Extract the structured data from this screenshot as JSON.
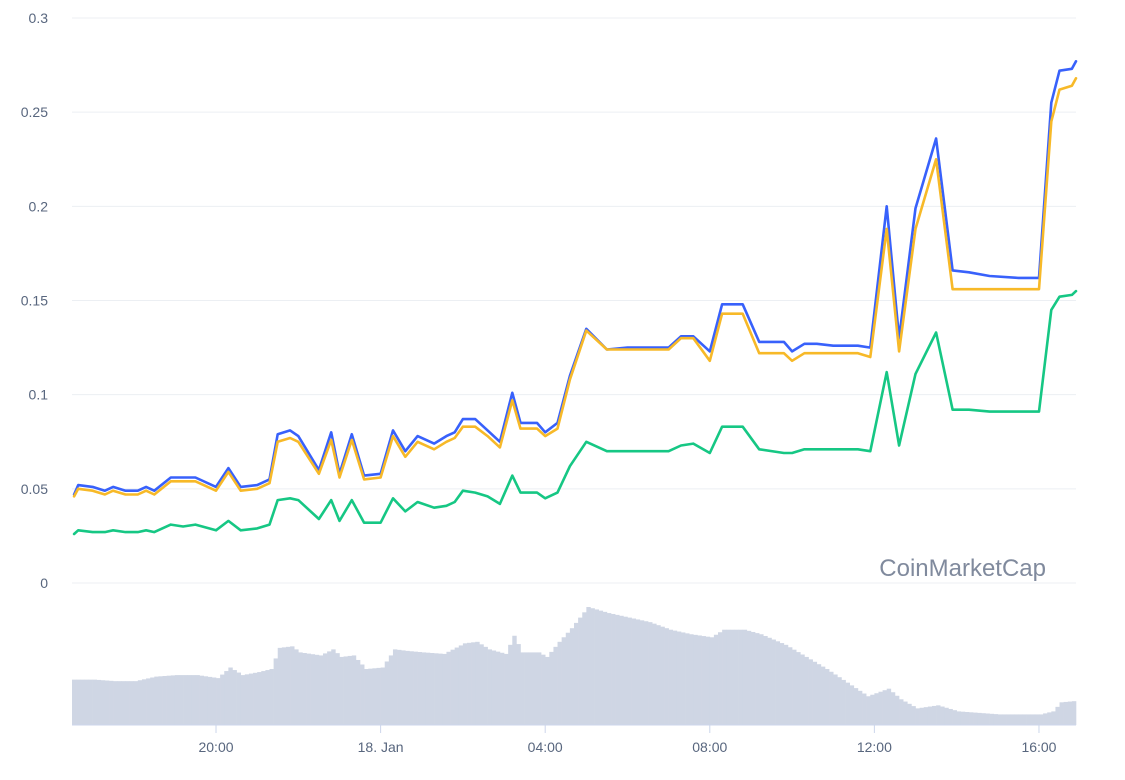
{
  "watermark": "CoinMarketCap",
  "colors": {
    "series_blue": "#3861fb",
    "series_yellow": "#f7b928",
    "series_green": "#16c784",
    "volume": "#cfd6e4",
    "grid": "#eceff3",
    "axis_text": "#58667e"
  },
  "chart_data": {
    "type": "line",
    "title": "",
    "xlabel": "",
    "ylabel": "",
    "ylim": [
      0,
      0.3
    ],
    "y_ticks": [
      {
        "value": 0,
        "label": "0"
      },
      {
        "value": 0.05,
        "label": "0.05"
      },
      {
        "value": 0.1,
        "label": "0.1"
      },
      {
        "value": 0.15,
        "label": "0.15"
      },
      {
        "value": 0.2,
        "label": "0.2"
      },
      {
        "value": 0.25,
        "label": "0.25"
      },
      {
        "value": 0.3,
        "label": "0.3"
      }
    ],
    "x_range_hours": [
      16.5,
      40.9
    ],
    "x_ticks": [
      {
        "hour": 20,
        "label": "20:00"
      },
      {
        "hour": 24,
        "label": "18. Jan"
      },
      {
        "hour": 28,
        "label": "04:00"
      },
      {
        "hour": 32,
        "label": "08:00"
      },
      {
        "hour": 36,
        "label": "12:00"
      },
      {
        "hour": 40,
        "label": "16:00"
      }
    ],
    "grid": true,
    "legend": "none",
    "series": [
      {
        "color": "#3861fb",
        "points": [
          [
            16.55,
            0.047
          ],
          [
            16.65,
            0.052
          ],
          [
            17.0,
            0.051
          ],
          [
            17.3,
            0.049
          ],
          [
            17.5,
            0.051
          ],
          [
            17.8,
            0.049
          ],
          [
            18.1,
            0.049
          ],
          [
            18.3,
            0.051
          ],
          [
            18.5,
            0.049
          ],
          [
            18.9,
            0.056
          ],
          [
            19.2,
            0.056
          ],
          [
            19.5,
            0.056
          ],
          [
            20.0,
            0.051
          ],
          [
            20.3,
            0.061
          ],
          [
            20.6,
            0.051
          ],
          [
            21.0,
            0.052
          ],
          [
            21.3,
            0.055
          ],
          [
            21.5,
            0.079
          ],
          [
            21.8,
            0.081
          ],
          [
            22.0,
            0.078
          ],
          [
            22.5,
            0.06
          ],
          [
            22.8,
            0.08
          ],
          [
            23.0,
            0.058
          ],
          [
            23.3,
            0.079
          ],
          [
            23.6,
            0.057
          ],
          [
            24.0,
            0.058
          ],
          [
            24.3,
            0.081
          ],
          [
            24.6,
            0.07
          ],
          [
            24.9,
            0.078
          ],
          [
            25.3,
            0.074
          ],
          [
            25.6,
            0.078
          ],
          [
            25.8,
            0.08
          ],
          [
            26.0,
            0.087
          ],
          [
            26.3,
            0.087
          ],
          [
            26.6,
            0.081
          ],
          [
            26.9,
            0.075
          ],
          [
            27.2,
            0.101
          ],
          [
            27.4,
            0.085
          ],
          [
            27.8,
            0.085
          ],
          [
            28.0,
            0.08
          ],
          [
            28.3,
            0.085
          ],
          [
            28.6,
            0.11
          ],
          [
            29.0,
            0.135
          ],
          [
            29.5,
            0.124
          ],
          [
            30.0,
            0.125
          ],
          [
            30.5,
            0.125
          ],
          [
            31.0,
            0.125
          ],
          [
            31.3,
            0.131
          ],
          [
            31.6,
            0.131
          ],
          [
            32.0,
            0.123
          ],
          [
            32.3,
            0.148
          ],
          [
            32.8,
            0.148
          ],
          [
            33.2,
            0.128
          ],
          [
            33.8,
            0.128
          ],
          [
            34.0,
            0.123
          ],
          [
            34.3,
            0.127
          ],
          [
            34.6,
            0.127
          ],
          [
            35.0,
            0.126
          ],
          [
            35.6,
            0.126
          ],
          [
            35.9,
            0.125
          ],
          [
            36.3,
            0.2
          ],
          [
            36.6,
            0.13
          ],
          [
            37.0,
            0.199
          ],
          [
            37.5,
            0.236
          ],
          [
            37.9,
            0.166
          ],
          [
            38.3,
            0.165
          ],
          [
            38.8,
            0.163
          ],
          [
            39.5,
            0.162
          ],
          [
            40.0,
            0.162
          ],
          [
            40.3,
            0.255
          ],
          [
            40.5,
            0.272
          ],
          [
            40.8,
            0.273
          ],
          [
            40.9,
            0.277
          ]
        ]
      },
      {
        "color": "#f7b928",
        "points": [
          [
            16.55,
            0.046
          ],
          [
            16.65,
            0.05
          ],
          [
            17.0,
            0.049
          ],
          [
            17.3,
            0.047
          ],
          [
            17.5,
            0.049
          ],
          [
            17.8,
            0.047
          ],
          [
            18.1,
            0.047
          ],
          [
            18.3,
            0.049
          ],
          [
            18.5,
            0.047
          ],
          [
            18.9,
            0.054
          ],
          [
            19.2,
            0.054
          ],
          [
            19.5,
            0.054
          ],
          [
            20.0,
            0.049
          ],
          [
            20.3,
            0.059
          ],
          [
            20.6,
            0.049
          ],
          [
            21.0,
            0.05
          ],
          [
            21.3,
            0.053
          ],
          [
            21.5,
            0.075
          ],
          [
            21.8,
            0.077
          ],
          [
            22.0,
            0.075
          ],
          [
            22.5,
            0.058
          ],
          [
            22.8,
            0.076
          ],
          [
            23.0,
            0.056
          ],
          [
            23.3,
            0.076
          ],
          [
            23.6,
            0.055
          ],
          [
            24.0,
            0.056
          ],
          [
            24.3,
            0.078
          ],
          [
            24.6,
            0.067
          ],
          [
            24.9,
            0.075
          ],
          [
            25.3,
            0.071
          ],
          [
            25.6,
            0.075
          ],
          [
            25.8,
            0.077
          ],
          [
            26.0,
            0.083
          ],
          [
            26.3,
            0.083
          ],
          [
            26.6,
            0.078
          ],
          [
            26.9,
            0.072
          ],
          [
            27.2,
            0.097
          ],
          [
            27.4,
            0.082
          ],
          [
            27.8,
            0.082
          ],
          [
            28.0,
            0.078
          ],
          [
            28.3,
            0.082
          ],
          [
            28.6,
            0.108
          ],
          [
            29.0,
            0.134
          ],
          [
            29.5,
            0.124
          ],
          [
            30.0,
            0.124
          ],
          [
            30.5,
            0.124
          ],
          [
            31.0,
            0.124
          ],
          [
            31.3,
            0.13
          ],
          [
            31.6,
            0.13
          ],
          [
            32.0,
            0.118
          ],
          [
            32.3,
            0.143
          ],
          [
            32.8,
            0.143
          ],
          [
            33.2,
            0.122
          ],
          [
            33.8,
            0.122
          ],
          [
            34.0,
            0.118
          ],
          [
            34.3,
            0.122
          ],
          [
            34.6,
            0.122
          ],
          [
            35.0,
            0.122
          ],
          [
            35.6,
            0.122
          ],
          [
            35.9,
            0.12
          ],
          [
            36.3,
            0.188
          ],
          [
            36.6,
            0.123
          ],
          [
            37.0,
            0.188
          ],
          [
            37.5,
            0.225
          ],
          [
            37.9,
            0.156
          ],
          [
            38.3,
            0.156
          ],
          [
            38.8,
            0.156
          ],
          [
            39.5,
            0.156
          ],
          [
            40.0,
            0.156
          ],
          [
            40.3,
            0.245
          ],
          [
            40.5,
            0.262
          ],
          [
            40.8,
            0.264
          ],
          [
            40.9,
            0.268
          ]
        ]
      },
      {
        "color": "#16c784",
        "points": [
          [
            16.55,
            0.026
          ],
          [
            16.65,
            0.028
          ],
          [
            17.0,
            0.027
          ],
          [
            17.3,
            0.027
          ],
          [
            17.5,
            0.028
          ],
          [
            17.8,
            0.027
          ],
          [
            18.1,
            0.027
          ],
          [
            18.3,
            0.028
          ],
          [
            18.5,
            0.027
          ],
          [
            18.9,
            0.031
          ],
          [
            19.2,
            0.03
          ],
          [
            19.5,
            0.031
          ],
          [
            20.0,
            0.028
          ],
          [
            20.3,
            0.033
          ],
          [
            20.6,
            0.028
          ],
          [
            21.0,
            0.029
          ],
          [
            21.3,
            0.031
          ],
          [
            21.5,
            0.044
          ],
          [
            21.8,
            0.045
          ],
          [
            22.0,
            0.044
          ],
          [
            22.5,
            0.034
          ],
          [
            22.8,
            0.044
          ],
          [
            23.0,
            0.033
          ],
          [
            23.3,
            0.044
          ],
          [
            23.6,
            0.032
          ],
          [
            24.0,
            0.032
          ],
          [
            24.3,
            0.045
          ],
          [
            24.6,
            0.038
          ],
          [
            24.9,
            0.043
          ],
          [
            25.3,
            0.04
          ],
          [
            25.6,
            0.041
          ],
          [
            25.8,
            0.043
          ],
          [
            26.0,
            0.049
          ],
          [
            26.3,
            0.048
          ],
          [
            26.6,
            0.046
          ],
          [
            26.9,
            0.042
          ],
          [
            27.2,
            0.057
          ],
          [
            27.4,
            0.048
          ],
          [
            27.8,
            0.048
          ],
          [
            28.0,
            0.045
          ],
          [
            28.3,
            0.048
          ],
          [
            28.6,
            0.062
          ],
          [
            29.0,
            0.075
          ],
          [
            29.5,
            0.07
          ],
          [
            30.0,
            0.07
          ],
          [
            30.5,
            0.07
          ],
          [
            31.0,
            0.07
          ],
          [
            31.3,
            0.073
          ],
          [
            31.6,
            0.074
          ],
          [
            32.0,
            0.069
          ],
          [
            32.3,
            0.083
          ],
          [
            32.8,
            0.083
          ],
          [
            33.2,
            0.071
          ],
          [
            33.8,
            0.069
          ],
          [
            34.0,
            0.069
          ],
          [
            34.3,
            0.071
          ],
          [
            34.6,
            0.071
          ],
          [
            35.0,
            0.071
          ],
          [
            35.6,
            0.071
          ],
          [
            35.9,
            0.07
          ],
          [
            36.3,
            0.112
          ],
          [
            36.6,
            0.073
          ],
          [
            37.0,
            0.111
          ],
          [
            37.5,
            0.133
          ],
          [
            37.9,
            0.092
          ],
          [
            38.3,
            0.092
          ],
          [
            38.8,
            0.091
          ],
          [
            39.5,
            0.091
          ],
          [
            40.0,
            0.091
          ],
          [
            40.3,
            0.145
          ],
          [
            40.5,
            0.152
          ],
          [
            40.8,
            0.153
          ],
          [
            40.9,
            0.155
          ]
        ]
      }
    ],
    "volume": {
      "unit": "relative",
      "points": [
        [
          16.5,
          0.3
        ],
        [
          17.0,
          0.3
        ],
        [
          17.5,
          0.29
        ],
        [
          18.0,
          0.29
        ],
        [
          18.5,
          0.32
        ],
        [
          19.0,
          0.33
        ],
        [
          19.5,
          0.33
        ],
        [
          20.0,
          0.31
        ],
        [
          20.3,
          0.38
        ],
        [
          20.6,
          0.33
        ],
        [
          21.0,
          0.35
        ],
        [
          21.3,
          0.37
        ],
        [
          21.5,
          0.51
        ],
        [
          21.8,
          0.52
        ],
        [
          22.0,
          0.48
        ],
        [
          22.5,
          0.46
        ],
        [
          22.8,
          0.5
        ],
        [
          23.0,
          0.45
        ],
        [
          23.3,
          0.46
        ],
        [
          23.6,
          0.37
        ],
        [
          24.0,
          0.38
        ],
        [
          24.3,
          0.5
        ],
        [
          24.6,
          0.49
        ],
        [
          25.0,
          0.48
        ],
        [
          25.5,
          0.47
        ],
        [
          26.0,
          0.54
        ],
        [
          26.3,
          0.55
        ],
        [
          26.6,
          0.5
        ],
        [
          27.0,
          0.47
        ],
        [
          27.2,
          0.59
        ],
        [
          27.4,
          0.48
        ],
        [
          27.8,
          0.48
        ],
        [
          28.0,
          0.45
        ],
        [
          28.3,
          0.55
        ],
        [
          28.6,
          0.64
        ],
        [
          29.0,
          0.78
        ],
        [
          29.5,
          0.74
        ],
        [
          30.0,
          0.71
        ],
        [
          30.5,
          0.68
        ],
        [
          31.0,
          0.63
        ],
        [
          31.5,
          0.6
        ],
        [
          32.0,
          0.58
        ],
        [
          32.3,
          0.63
        ],
        [
          32.8,
          0.63
        ],
        [
          33.2,
          0.6
        ],
        [
          33.8,
          0.53
        ],
        [
          34.3,
          0.45
        ],
        [
          34.8,
          0.37
        ],
        [
          35.3,
          0.28
        ],
        [
          35.8,
          0.19
        ],
        [
          36.3,
          0.24
        ],
        [
          36.6,
          0.17
        ],
        [
          37.0,
          0.11
        ],
        [
          37.5,
          0.13
        ],
        [
          38.0,
          0.09
        ],
        [
          38.5,
          0.08
        ],
        [
          39.0,
          0.07
        ],
        [
          39.5,
          0.07
        ],
        [
          40.0,
          0.07
        ],
        [
          40.3,
          0.09
        ],
        [
          40.5,
          0.15
        ],
        [
          40.9,
          0.16
        ]
      ]
    }
  }
}
